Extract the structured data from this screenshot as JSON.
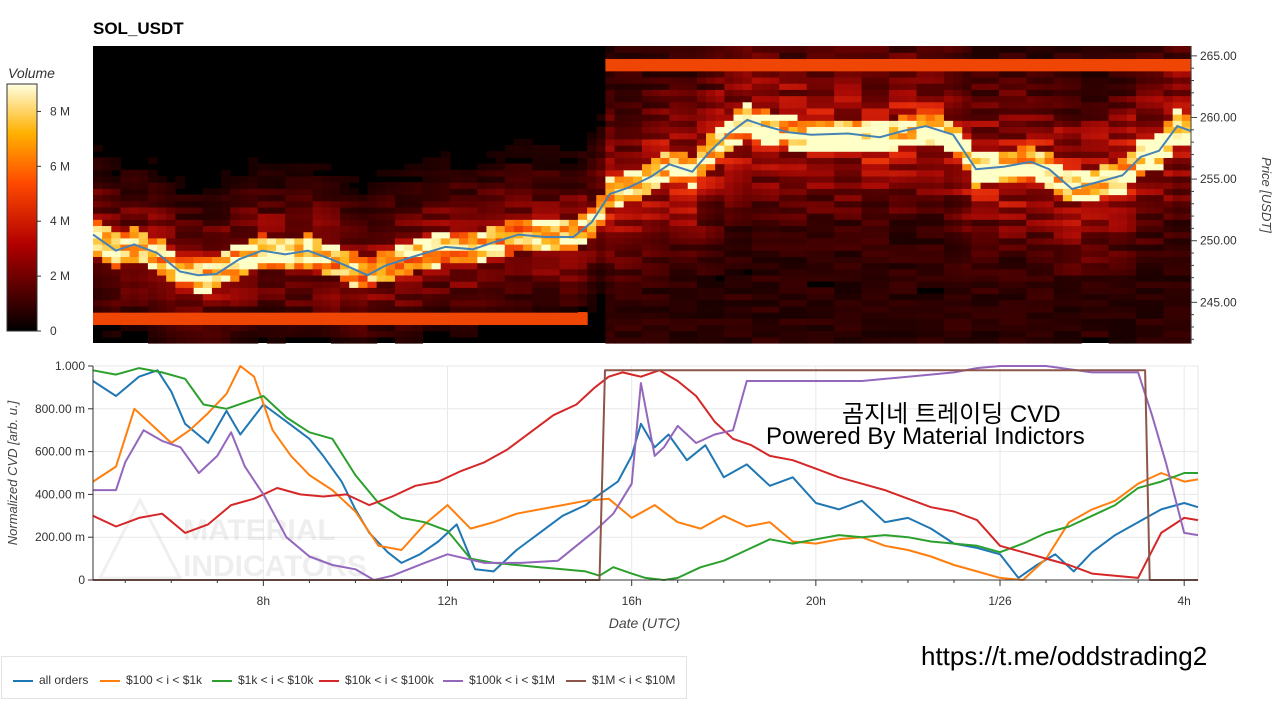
{
  "title": "SOL_USDT",
  "watermark": {
    "line1": "곰지네 트레이딩 CVD",
    "line2": "Powered By Material Indictors",
    "link": "https://t.me/oddstrading2",
    "logo_text": [
      "MATERIAL",
      "INDICATORS"
    ]
  },
  "chart_data": [
    {
      "type": "heatmap",
      "title": "SOL_USDT",
      "colorbar": {
        "label": "Volume",
        "ticks": [
          "0",
          "2 M",
          "4 M",
          "6 M",
          "8 M"
        ],
        "tick_values": [
          0,
          2,
          4,
          6,
          8
        ],
        "max": 9
      },
      "ylabel": "Price [USDT]",
      "ylim": [
        241.7,
        265.8
      ],
      "yticks": [
        "245.00",
        "250.00",
        "255.00",
        "260.00",
        "265.00"
      ],
      "ytick_values": [
        245,
        250,
        255,
        260,
        265
      ],
      "xlim": [
        4.3,
        28.3
      ],
      "price_series": {
        "name": "price",
        "color": "#4682b4",
        "t": [
          4.3,
          4.8,
          5.2,
          5.7,
          6.2,
          6.6,
          7.0,
          7.5,
          8.0,
          8.5,
          9.0,
          9.5,
          10.0,
          10.3,
          10.7,
          11.3,
          12.0,
          12.6,
          13.0,
          13.6,
          14.2,
          14.8,
          15.2,
          15.6,
          16.0,
          16.5,
          16.9,
          17.4,
          17.8,
          18.2,
          18.6,
          19.0,
          19.5,
          20.0,
          20.8,
          21.5,
          22.0,
          22.5,
          23.1,
          23.6,
          24.2,
          24.8,
          25.2,
          25.7,
          26.3,
          26.8,
          27.2,
          27.6,
          28.0,
          28.3
        ],
        "price": [
          250.5,
          249.2,
          249.7,
          249.0,
          247.5,
          247.2,
          247.3,
          248.5,
          249.2,
          248.9,
          249.2,
          248.5,
          247.7,
          247.2,
          248.0,
          248.7,
          249.5,
          249.3,
          249.8,
          250.5,
          250.3,
          250.3,
          251.5,
          253.8,
          254.3,
          255.2,
          256.2,
          255.6,
          257.3,
          258.7,
          259.8,
          259.3,
          258.8,
          258.6,
          258.7,
          258.4,
          258.9,
          259.3,
          258.6,
          255.8,
          256.0,
          256.4,
          255.8,
          254.2,
          254.8,
          255.3,
          256.8,
          257.3,
          259.3,
          258.9
        ]
      }
    },
    {
      "type": "line",
      "xlabel": "Date (UTC)",
      "ylabel": "Normalized CVD [arb. u.]",
      "ylim": [
        0,
        1.0
      ],
      "yticks": [
        "0",
        "200.00 m",
        "400.00 m",
        "600.00 m",
        "800.00 m",
        "1.000"
      ],
      "ytick_values": [
        0,
        0.2,
        0.4,
        0.6,
        0.8,
        1.0
      ],
      "xlim": [
        4.3,
        28.3
      ],
      "xticks": [
        "8h",
        "12h",
        "16h",
        "20h",
        "1/26",
        "4h"
      ],
      "xtick_values": [
        8,
        12,
        16,
        20,
        24,
        28
      ],
      "series": [
        {
          "name": "all orders",
          "color": "#1f77b4",
          "x": [
            4.3,
            4.8,
            5.3,
            5.7,
            6.0,
            6.3,
            6.8,
            7.2,
            7.5,
            8.0,
            8.5,
            9.0,
            9.3,
            9.7,
            10.0,
            10.3,
            10.7,
            11.0,
            11.4,
            11.8,
            12.2,
            12.6,
            13.0,
            13.5,
            14.0,
            14.5,
            15.0,
            15.3,
            15.7,
            16.0,
            16.2,
            16.5,
            16.8,
            17.2,
            17.6,
            18.0,
            18.5,
            19.0,
            19.5,
            20.0,
            20.5,
            21.0,
            21.5,
            22.0,
            22.5,
            23.0,
            23.5,
            24.0,
            24.4,
            24.8,
            25.2,
            25.6,
            26.0,
            26.5,
            27.0,
            27.5,
            28.0,
            28.3
          ],
          "y": [
            0.93,
            0.86,
            0.95,
            0.98,
            0.88,
            0.73,
            0.64,
            0.79,
            0.68,
            0.82,
            0.74,
            0.66,
            0.58,
            0.46,
            0.33,
            0.22,
            0.13,
            0.08,
            0.12,
            0.18,
            0.26,
            0.05,
            0.04,
            0.14,
            0.22,
            0.3,
            0.35,
            0.4,
            0.46,
            0.58,
            0.73,
            0.62,
            0.68,
            0.56,
            0.63,
            0.48,
            0.54,
            0.44,
            0.48,
            0.36,
            0.33,
            0.37,
            0.27,
            0.29,
            0.24,
            0.17,
            0.15,
            0.12,
            0.01,
            0.07,
            0.12,
            0.04,
            0.13,
            0.21,
            0.27,
            0.33,
            0.36,
            0.34
          ]
        },
        {
          "name": "$100 < i < $1k",
          "color": "#ff7f0e",
          "x": [
            4.3,
            4.8,
            5.2,
            5.6,
            6.0,
            6.4,
            6.8,
            7.2,
            7.5,
            7.8,
            8.2,
            8.6,
            9.0,
            9.5,
            10.0,
            10.5,
            11.0,
            11.5,
            12.0,
            12.5,
            13.0,
            13.5,
            14.0,
            14.5,
            15.0,
            15.5,
            16.0,
            16.5,
            17.0,
            17.5,
            18.0,
            18.5,
            19.0,
            19.5,
            20.0,
            20.5,
            21.0,
            21.5,
            22.0,
            22.5,
            23.0,
            23.5,
            24.0,
            24.5,
            25.0,
            25.5,
            26.0,
            26.5,
            27.0,
            27.5,
            28.0,
            28.3
          ],
          "y": [
            0.46,
            0.53,
            0.8,
            0.72,
            0.64,
            0.7,
            0.78,
            0.87,
            1.0,
            0.95,
            0.7,
            0.58,
            0.49,
            0.42,
            0.32,
            0.16,
            0.14,
            0.26,
            0.35,
            0.24,
            0.27,
            0.31,
            0.33,
            0.35,
            0.37,
            0.38,
            0.29,
            0.35,
            0.27,
            0.24,
            0.3,
            0.25,
            0.27,
            0.18,
            0.17,
            0.19,
            0.2,
            0.16,
            0.14,
            0.11,
            0.07,
            0.04,
            0.01,
            0.0,
            0.1,
            0.27,
            0.33,
            0.37,
            0.45,
            0.5,
            0.46,
            0.47
          ]
        },
        {
          "name": "$1k < i < $10k",
          "color": "#2ca02c",
          "x": [
            4.3,
            4.8,
            5.3,
            5.8,
            6.3,
            6.7,
            7.2,
            7.6,
            8.0,
            8.5,
            9.0,
            9.5,
            10.0,
            10.5,
            11.0,
            11.5,
            12.0,
            12.5,
            13.0,
            13.5,
            14.0,
            14.5,
            15.0,
            15.3,
            15.6,
            16.0,
            16.3,
            16.7,
            17.0,
            17.5,
            18.0,
            18.5,
            19.0,
            19.5,
            20.0,
            20.5,
            21.0,
            21.5,
            22.0,
            22.5,
            23.0,
            23.5,
            24.0,
            24.5,
            25.0,
            25.5,
            26.0,
            26.5,
            27.0,
            27.5,
            28.0,
            28.3
          ],
          "y": [
            0.98,
            0.96,
            0.99,
            0.97,
            0.94,
            0.82,
            0.8,
            0.83,
            0.86,
            0.76,
            0.69,
            0.66,
            0.49,
            0.36,
            0.29,
            0.27,
            0.23,
            0.1,
            0.08,
            0.07,
            0.06,
            0.05,
            0.04,
            0.02,
            0.06,
            0.03,
            0.01,
            0.0,
            0.01,
            0.06,
            0.09,
            0.14,
            0.19,
            0.17,
            0.19,
            0.21,
            0.2,
            0.21,
            0.2,
            0.18,
            0.17,
            0.16,
            0.13,
            0.17,
            0.22,
            0.25,
            0.3,
            0.35,
            0.43,
            0.46,
            0.5,
            0.5
          ]
        },
        {
          "name": "$10k < i < $100k",
          "color": "#d62728",
          "x": [
            4.3,
            4.8,
            5.3,
            5.8,
            6.3,
            6.8,
            7.3,
            7.8,
            8.3,
            8.8,
            9.3,
            9.8,
            10.3,
            10.8,
            11.3,
            11.8,
            12.3,
            12.8,
            13.3,
            13.8,
            14.3,
            14.8,
            15.2,
            15.5,
            15.8,
            16.2,
            16.6,
            17.0,
            17.4,
            17.8,
            18.2,
            18.6,
            19.0,
            19.5,
            20.0,
            20.5,
            21.0,
            21.5,
            22.0,
            22.5,
            23.0,
            23.5,
            24.0,
            24.5,
            25.0,
            25.5,
            26.0,
            26.5,
            27.0,
            27.5,
            28.0,
            28.3
          ],
          "y": [
            0.3,
            0.25,
            0.29,
            0.31,
            0.22,
            0.26,
            0.35,
            0.38,
            0.43,
            0.4,
            0.39,
            0.4,
            0.35,
            0.39,
            0.44,
            0.46,
            0.51,
            0.55,
            0.61,
            0.69,
            0.77,
            0.82,
            0.9,
            0.95,
            0.97,
            0.95,
            0.98,
            0.93,
            0.86,
            0.74,
            0.66,
            0.63,
            0.58,
            0.56,
            0.52,
            0.48,
            0.45,
            0.42,
            0.38,
            0.34,
            0.32,
            0.28,
            0.16,
            0.13,
            0.1,
            0.07,
            0.03,
            0.02,
            0.01,
            0.22,
            0.29,
            0.28
          ]
        },
        {
          "name": "$100k < i < $1M",
          "color": "#9467bd",
          "x": [
            4.3,
            4.8,
            5.0,
            5.4,
            5.8,
            6.2,
            6.6,
            7.0,
            7.3,
            7.6,
            8.0,
            8.5,
            9.0,
            9.5,
            10.0,
            10.4,
            10.8,
            11.5,
            12.0,
            12.8,
            13.6,
            14.4,
            15.2,
            15.6,
            16.0,
            16.2,
            16.5,
            16.7,
            17.0,
            17.4,
            17.8,
            18.2,
            18.5,
            19.0,
            20.0,
            21.0,
            22.0,
            23.0,
            23.5,
            24.0,
            25.0,
            26.0,
            27.0,
            27.3,
            27.6,
            28.0,
            28.3
          ],
          "y": [
            0.42,
            0.42,
            0.55,
            0.7,
            0.65,
            0.62,
            0.5,
            0.58,
            0.69,
            0.53,
            0.4,
            0.2,
            0.11,
            0.07,
            0.05,
            0.0,
            0.02,
            0.08,
            0.12,
            0.08,
            0.08,
            0.09,
            0.23,
            0.31,
            0.45,
            0.92,
            0.58,
            0.62,
            0.72,
            0.64,
            0.68,
            0.7,
            0.93,
            0.93,
            0.93,
            0.93,
            0.95,
            0.97,
            0.99,
            1.0,
            1.0,
            0.97,
            0.97,
            0.77,
            0.55,
            0.22,
            0.21
          ]
        },
        {
          "name": "$1M < i < $10M",
          "color": "#8c564b",
          "x": [
            4.3,
            10.0,
            15.3,
            15.42,
            16.0,
            20.0,
            24.0,
            27.15,
            27.25,
            28.3
          ],
          "y": [
            0.0,
            0.0,
            0.0,
            0.98,
            0.98,
            0.98,
            0.98,
            0.98,
            0.0,
            0.0
          ]
        }
      ]
    }
  ]
}
